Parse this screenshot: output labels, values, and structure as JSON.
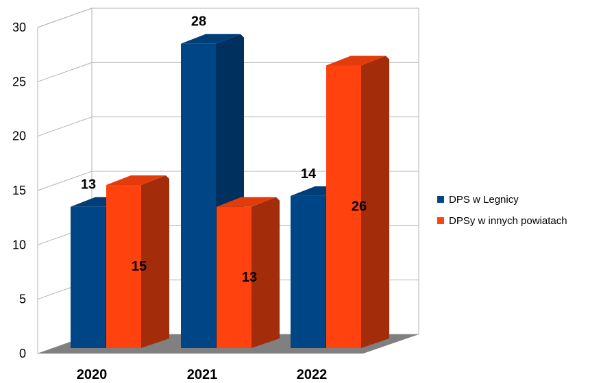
{
  "chart_data": {
    "type": "bar",
    "title": "",
    "xlabel": "",
    "ylabel": "",
    "categories": [
      "2020",
      "2021",
      "2022"
    ],
    "ylim": [
      0,
      30
    ],
    "yticks": [
      "0",
      "5",
      "10",
      "15",
      "20",
      "25",
      "30"
    ],
    "grid": true,
    "three_d": true,
    "legend_position": "right",
    "series": [
      {
        "name": "DPS w Legnicy",
        "values": [
          13,
          28,
          14
        ],
        "labels": [
          "13",
          "28",
          "14"
        ],
        "color": "#004586",
        "side_color": "#00305e",
        "top_color": "#003e78"
      },
      {
        "name": "DPSy w innych powiatach",
        "values": [
          15,
          13,
          26
        ],
        "labels": [
          "15",
          "13",
          "26"
        ],
        "color": "#ff420e",
        "side_color": "#a32d0a",
        "top_color": "#e23c0c"
      }
    ],
    "floor_color": "#808080"
  }
}
